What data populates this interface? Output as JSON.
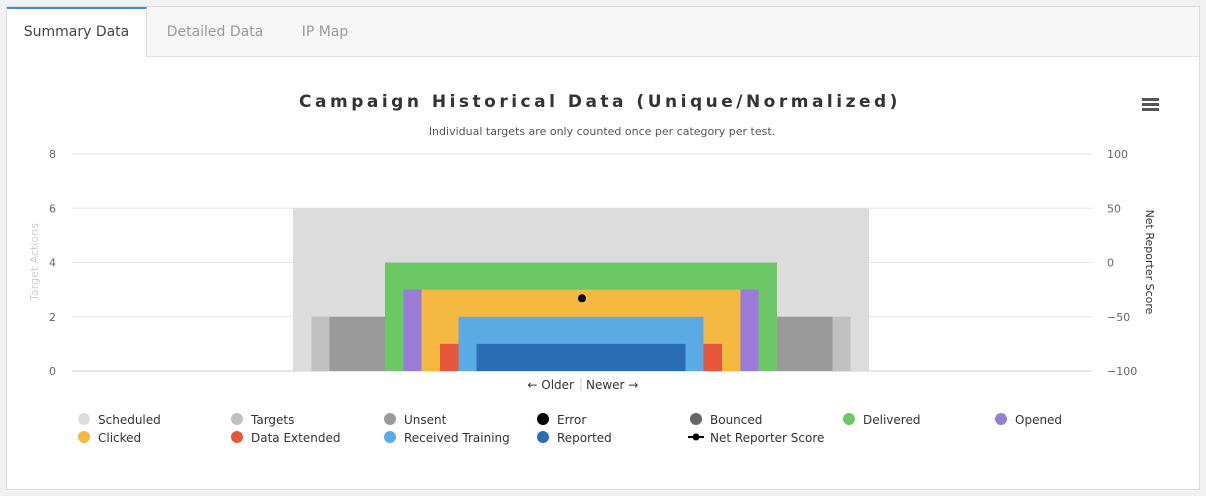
{
  "tabs": [
    {
      "label": "Summary Data",
      "active": true
    },
    {
      "label": "Detailed Data",
      "active": false
    },
    {
      "label": "IP Map",
      "active": false
    }
  ],
  "chart_data": {
    "type": "bar",
    "title": "Campaign Historical Data (Unique/Normalized)",
    "subtitle": "Individual targets are only counted once per category per test.",
    "ylabel": "Target Actions",
    "y2label": "Net Reporter Score",
    "ylim": [
      0,
      8
    ],
    "y2lim": [
      -100,
      100
    ],
    "yticks": [
      0,
      2,
      4,
      6,
      8
    ],
    "y2ticks": [
      -100,
      -50,
      0,
      50,
      100
    ],
    "xlabel_older": "← Older",
    "xlabel_newer": "Newer →",
    "grid": true,
    "legend_position": "bottom",
    "series": [
      {
        "name": "Scheduled",
        "color": "#dcdcdc",
        "value": 6
      },
      {
        "name": "Targets",
        "color": "#c0c0c0",
        "value": 2
      },
      {
        "name": "Unsent",
        "color": "#9a9a9a",
        "value": 2
      },
      {
        "name": "Error",
        "color": "#000000",
        "value": 0
      },
      {
        "name": "Bounced",
        "color": "#666666",
        "value": 0
      },
      {
        "name": "Delivered",
        "color": "#6cc865",
        "value": 4
      },
      {
        "name": "Opened",
        "color": "#9b7bd9",
        "value": 3
      },
      {
        "name": "Clicked",
        "color": "#f5b942",
        "value": 3
      },
      {
        "name": "Data Extended",
        "color": "#e8563e",
        "value": 1
      },
      {
        "name": "Received Training",
        "color": "#5aabe3",
        "value": 2
      },
      {
        "name": "Reported",
        "color": "#2a6db5",
        "value": 1
      },
      {
        "name": "Net Reporter Score",
        "color": "#000000",
        "value": -33,
        "type": "line"
      }
    ]
  }
}
